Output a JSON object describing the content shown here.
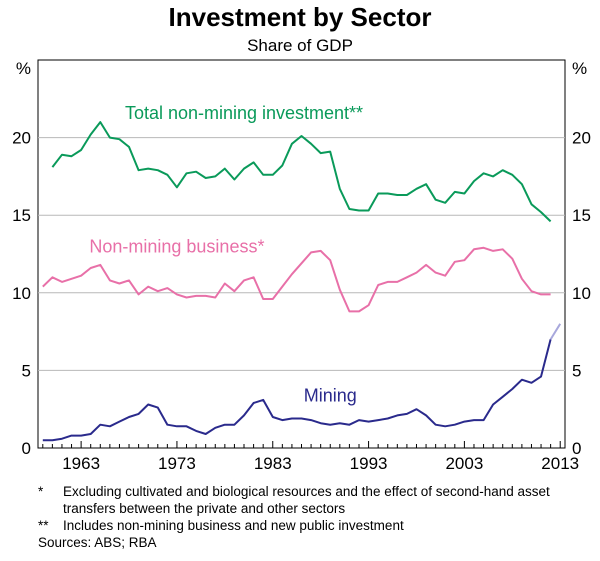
{
  "chart_data": {
    "type": "line",
    "title": "Investment by Sector",
    "subtitle": "Share of GDP",
    "left_unit": "%",
    "right_unit": "%",
    "ylim": [
      0,
      25
    ],
    "yticks": [
      0,
      5,
      10,
      15,
      20
    ],
    "xlim": [
      1958.5,
      2013.5
    ],
    "xticks": [
      1963,
      1973,
      1983,
      1993,
      2003,
      2013
    ],
    "grid": true,
    "x": [
      1959,
      1960,
      1961,
      1962,
      1963,
      1964,
      1965,
      1966,
      1967,
      1968,
      1969,
      1970,
      1971,
      1972,
      1973,
      1974,
      1975,
      1976,
      1977,
      1978,
      1979,
      1980,
      1981,
      1982,
      1983,
      1984,
      1985,
      1986,
      1987,
      1988,
      1989,
      1990,
      1991,
      1992,
      1993,
      1994,
      1995,
      1996,
      1997,
      1998,
      1999,
      2000,
      2001,
      2002,
      2003,
      2004,
      2005,
      2006,
      2007,
      2008,
      2009,
      2010,
      2011,
      2012,
      2013
    ],
    "series": [
      {
        "name": "Total non-mining investment**",
        "color": "#0a9a5a",
        "forecast_color": "#8fd0b0",
        "forecast_from_index": 53,
        "values": [
          null,
          18.1,
          18.9,
          18.8,
          19.2,
          20.2,
          21.0,
          20.0,
          19.9,
          19.4,
          17.9,
          18.0,
          17.9,
          17.6,
          16.8,
          17.7,
          17.8,
          17.4,
          17.5,
          18.0,
          17.3,
          18.0,
          18.4,
          17.6,
          17.6,
          18.2,
          19.6,
          20.1,
          19.6,
          19.0,
          19.1,
          16.7,
          15.4,
          15.3,
          15.3,
          16.4,
          16.4,
          16.3,
          16.3,
          16.7,
          17.0,
          16.0,
          15.8,
          16.5,
          16.4,
          17.2,
          17.7,
          17.5,
          17.9,
          17.6,
          17.0,
          15.7,
          15.2,
          14.6,
          null
        ]
      },
      {
        "name": "Non-mining business*",
        "color": "#e870a8",
        "forecast_color": "#f4b4d2",
        "forecast_from_index": 53,
        "values": [
          10.4,
          11.0,
          10.7,
          10.9,
          11.1,
          11.6,
          11.8,
          10.8,
          10.6,
          10.8,
          9.9,
          10.4,
          10.1,
          10.3,
          9.9,
          9.7,
          9.8,
          9.8,
          9.7,
          10.6,
          10.1,
          10.8,
          11.0,
          9.6,
          9.6,
          10.4,
          11.2,
          11.9,
          12.6,
          12.7,
          12.1,
          10.2,
          8.8,
          8.8,
          9.2,
          10.5,
          10.7,
          10.7,
          11.0,
          11.3,
          11.8,
          11.3,
          11.1,
          12.0,
          12.1,
          12.8,
          12.9,
          12.7,
          12.8,
          12.2,
          10.9,
          10.1,
          9.9,
          9.9,
          null
        ]
      },
      {
        "name": "Mining",
        "color": "#2a2a8c",
        "forecast_color": "#a8a8dc",
        "forecast_from_index": 53,
        "values": [
          0.5,
          0.5,
          0.6,
          0.8,
          0.8,
          0.9,
          1.5,
          1.4,
          1.7,
          2.0,
          2.2,
          2.8,
          2.6,
          1.5,
          1.4,
          1.4,
          1.1,
          0.9,
          1.3,
          1.5,
          1.5,
          2.1,
          2.9,
          3.1,
          2.0,
          1.8,
          1.9,
          1.9,
          1.8,
          1.6,
          1.5,
          1.6,
          1.5,
          1.8,
          1.7,
          1.8,
          1.9,
          2.1,
          2.2,
          2.5,
          2.1,
          1.5,
          1.4,
          1.5,
          1.7,
          1.8,
          1.8,
          2.8,
          3.3,
          3.8,
          4.4,
          4.2,
          4.6,
          7.0,
          8.0
        ]
      }
    ],
    "annotations": [
      {
        "text": "Total non-mining investment**",
        "series": 0,
        "x": 1980,
        "y": 21.2
      },
      {
        "text": "Non-mining business*",
        "series": 1,
        "x": 1973,
        "y": 12.6
      },
      {
        "text": "Mining",
        "series": 2,
        "x": 1989,
        "y": 3.0
      }
    ]
  },
  "footnotes": [
    {
      "mark": "*",
      "text": "Excluding cultivated and biological resources and the effect of second-hand asset transfers between the private and other sectors"
    },
    {
      "mark": "**",
      "text": "Includes non-mining business and new public investment"
    }
  ],
  "sources": "Sources: ABS; RBA"
}
